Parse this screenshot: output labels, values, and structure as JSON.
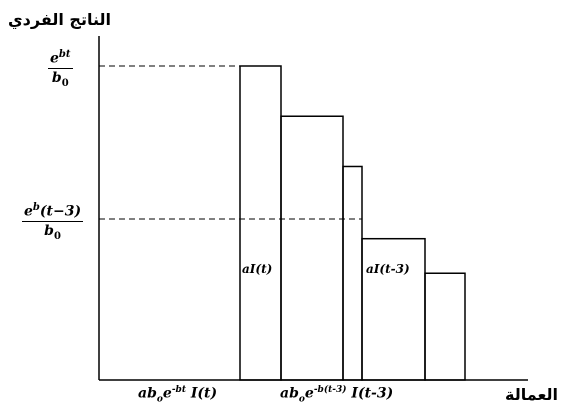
{
  "labels": {
    "y_axis": "الناتج الفردي",
    "x_axis": "العمالة",
    "y_top_num": "e^{bt}",
    "y_top_den": "b₀",
    "y_mid_num": "e^b(t−3)",
    "y_mid_den": "b₀",
    "bar_t": "aI(t)",
    "bar_t3": "aI(t-3)",
    "x_label_1": "ab₀e^{-bt} I(t)",
    "x_label_2": "ab₀e^{-b(t-3)} I(t-3)"
  },
  "diagram": {
    "steps": [
      1.0,
      0.84,
      0.68,
      0.45,
      0.34
    ],
    "reference_levels": [
      1.0,
      0.45
    ],
    "note": "levels are relative heights of the stepped output-per-worker schedule"
  }
}
